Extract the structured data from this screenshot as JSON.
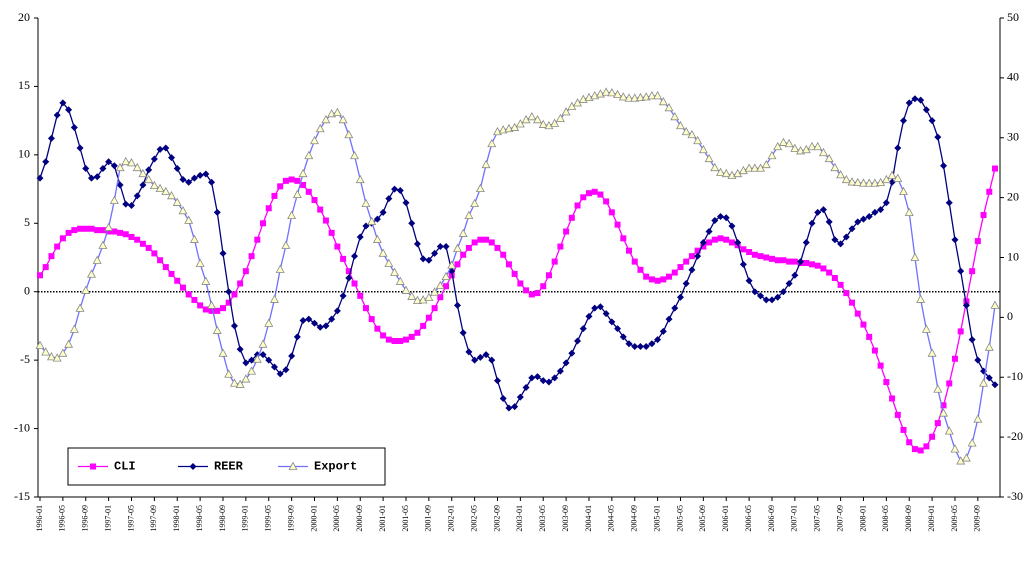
{
  "chart_data": {
    "type": "line",
    "categories": [
      "1996-01",
      null,
      null,
      null,
      "1996-05",
      null,
      null,
      null,
      "1996-09",
      null,
      null,
      null,
      "1997-01",
      null,
      null,
      null,
      "1997-05",
      null,
      null,
      null,
      "1997-09",
      null,
      null,
      null,
      "1998-01",
      null,
      null,
      null,
      "1998-05",
      null,
      null,
      null,
      "1998-09",
      null,
      null,
      null,
      "1999-01",
      null,
      null,
      null,
      "1999-05",
      null,
      null,
      null,
      "1999-09",
      null,
      null,
      null,
      "2000-01",
      null,
      null,
      null,
      "2000-05",
      null,
      null,
      null,
      "2000-09",
      null,
      null,
      null,
      "2001-01",
      null,
      null,
      null,
      "2001-05",
      null,
      null,
      null,
      "2001-09",
      null,
      null,
      null,
      "2002-01",
      null,
      null,
      null,
      "2002-05",
      null,
      null,
      null,
      "2002-09",
      null,
      null,
      null,
      "2003-01",
      null,
      null,
      null,
      "2003-05",
      null,
      null,
      null,
      "2003-09",
      null,
      null,
      null,
      "2004-01",
      null,
      null,
      null,
      "2004-05",
      null,
      null,
      null,
      "2004-09",
      null,
      null,
      null,
      "2005-01",
      null,
      null,
      null,
      "2005-05",
      null,
      null,
      null,
      "2005-09",
      null,
      null,
      null,
      "2006-01",
      null,
      null,
      null,
      "2006-05",
      null,
      null,
      null,
      "2006-09",
      null,
      null,
      null,
      "2007-01",
      null,
      null,
      null,
      "2007-05",
      null,
      null,
      null,
      "2007-09",
      null,
      null,
      null,
      "2008-01",
      null,
      null,
      null,
      "2008-05",
      null,
      null,
      null,
      "2008-09",
      null,
      null,
      null,
      "2009-01",
      null,
      null,
      null,
      "2009-05",
      null,
      null,
      null,
      "2009-09",
      null,
      null,
      null
    ],
    "series": [
      {
        "name": "CLI",
        "color": "#ff00ff",
        "marker": "square",
        "values": [
          1.2,
          1.8,
          2.6,
          3.3,
          3.9,
          4.3,
          4.5,
          4.6,
          4.6,
          4.6,
          4.5,
          4.5,
          4.4,
          4.4,
          4.3,
          4.2,
          4.0,
          3.8,
          3.5,
          3.2,
          2.8,
          2.3,
          1.8,
          1.3,
          0.8,
          0.3,
          -0.2,
          -0.6,
          -1.0,
          -1.3,
          -1.4,
          -1.4,
          -1.2,
          -0.8,
          -0.2,
          0.6,
          1.5,
          2.6,
          3.8,
          5.0,
          6.1,
          7.0,
          7.7,
          8.1,
          8.2,
          8.1,
          7.8,
          7.3,
          6.7,
          6.0,
          5.2,
          4.3,
          3.3,
          2.4,
          1.5,
          0.6,
          -0.3,
          -1.2,
          -2.0,
          -2.7,
          -3.2,
          -3.5,
          -3.6,
          -3.6,
          -3.5,
          -3.3,
          -3.0,
          -2.5,
          -1.9,
          -1.2,
          -0.4,
          0.4,
          1.2,
          2.0,
          2.7,
          3.2,
          3.6,
          3.8,
          3.8,
          3.6,
          3.2,
          2.7,
          2.0,
          1.3,
          0.6,
          0.1,
          -0.2,
          -0.1,
          0.4,
          1.2,
          2.2,
          3.3,
          4.4,
          5.4,
          6.3,
          6.9,
          7.2,
          7.3,
          7.1,
          6.6,
          5.8,
          4.9,
          3.9,
          3.0,
          2.2,
          1.6,
          1.1,
          0.9,
          0.8,
          0.9,
          1.1,
          1.4,
          1.8,
          2.2,
          2.6,
          3.0,
          3.3,
          3.6,
          3.8,
          3.9,
          3.8,
          3.6,
          3.4,
          3.1,
          2.9,
          2.7,
          2.6,
          2.5,
          2.4,
          2.3,
          2.3,
          2.2,
          2.2,
          2.1,
          2.1,
          2.0,
          1.9,
          1.7,
          1.4,
          1.0,
          0.5,
          -0.1,
          -0.8,
          -1.6,
          -2.4,
          -3.3,
          -4.3,
          -5.4,
          -6.6,
          -7.8,
          -9.0,
          -10.1,
          -11.0,
          -11.5,
          -11.6,
          -11.3,
          -10.6,
          -9.6,
          -8.3,
          -6.7,
          -4.9,
          -2.9,
          -0.7,
          1.5,
          3.7,
          5.6,
          7.3,
          9.0
        ]
      },
      {
        "name": "REER",
        "color": "#000080",
        "marker": "diamond",
        "values": [
          8.3,
          9.5,
          11.2,
          12.9,
          13.8,
          13.3,
          12.0,
          10.5,
          9.0,
          8.3,
          8.4,
          9.0,
          9.5,
          9.2,
          7.8,
          6.4,
          6.3,
          7.0,
          7.8,
          8.9,
          9.7,
          10.4,
          10.5,
          9.8,
          9.0,
          8.2,
          8.0,
          8.3,
          8.5,
          8.6,
          8.0,
          5.8,
          2.8,
          0,
          -2.5,
          -4.2,
          -5.2,
          -5.0,
          -4.6,
          -4.6,
          -5.0,
          -5.5,
          -6.0,
          -5.7,
          -4.7,
          -3.3,
          -2.1,
          -2.0,
          -2.3,
          -2.6,
          -2.5,
          -2.0,
          -1.4,
          -0.3,
          1.0,
          2.6,
          4.0,
          4.8,
          5.0,
          5.3,
          5.8,
          6.8,
          7.5,
          7.4,
          6.5,
          5.0,
          3.5,
          2.4,
          2.3,
          2.8,
          3.3,
          3.3,
          1.5,
          -1.0,
          -3.0,
          -4.4,
          -5.0,
          -4.8,
          -4.6,
          -5.0,
          -6.5,
          -7.8,
          -8.5,
          -8.4,
          -7.7,
          -7.0,
          -6.3,
          -6.2,
          -6.5,
          -6.6,
          -6.3,
          -5.8,
          -5.2,
          -4.5,
          -3.6,
          -2.7,
          -1.8,
          -1.2,
          -1.1,
          -1.6,
          -2.2,
          -2.7,
          -3.3,
          -3.8,
          -4.0,
          -4.0,
          -4.0,
          -3.8,
          -3.5,
          -2.9,
          -2.0,
          -1.2,
          -0.4,
          0.6,
          1.6,
          2.6,
          3.6,
          4.4,
          5.2,
          5.5,
          5.4,
          4.8,
          3.6,
          2.0,
          0.8,
          0.0,
          -0.3,
          -0.6,
          -0.6,
          -0.4,
          0,
          0.6,
          1.2,
          2.2,
          3.6,
          5.0,
          5.8,
          6.0,
          5.1,
          3.8,
          3.5,
          4.0,
          4.6,
          5.1,
          5.3,
          5.5,
          5.8,
          6.0,
          6.5,
          8.0,
          10.5,
          12.5,
          13.8,
          14.1,
          14.0,
          13.3,
          12.5,
          11.3,
          9.2,
          6.5,
          3.8,
          1.5,
          -1.0,
          -3.5,
          -5.0,
          -5.8,
          -6.3,
          -6.8
        ]
      },
      {
        "name": "Export",
        "color": "#7070ff",
        "marker": "triangle",
        "marker_fill": "#ffffcc",
        "axis": "y2",
        "values": [
          -4.7,
          -5.8,
          -6.6,
          -6.8,
          -6.0,
          -4.5,
          -2.0,
          1.5,
          4.5,
          7.2,
          9.5,
          12,
          15,
          19.5,
          25,
          26,
          25.8,
          25,
          24,
          23,
          22,
          21.5,
          21,
          20.3,
          19.2,
          17.8,
          16.2,
          13,
          9,
          6,
          2,
          -2.2,
          -6,
          -9.5,
          -11,
          -11.2,
          -10.3,
          -9,
          -7,
          -4.5,
          -1,
          3,
          8,
          12,
          17,
          20.5,
          24,
          27,
          29.5,
          31.5,
          33,
          34,
          34.2,
          33,
          30.5,
          27,
          23,
          19,
          16,
          13,
          10.7,
          9,
          7.5,
          6,
          4.5,
          3.5,
          2.8,
          2.9,
          3.3,
          4.2,
          5.3,
          6.8,
          8.7,
          11.5,
          14,
          17,
          19,
          21.5,
          25.5,
          29,
          31,
          31.3,
          31.5,
          31.7,
          32.3,
          33,
          33.5,
          33,
          32.2,
          32,
          32.4,
          33.2,
          34.3,
          35.2,
          35.8,
          36.4,
          36.7,
          37,
          37.3,
          37.6,
          37.5,
          37.2,
          36.8,
          36.6,
          36.6,
          36.7,
          36.8,
          37,
          37,
          36,
          35,
          33.5,
          32,
          31,
          30.5,
          29.5,
          28,
          26.5,
          25,
          24.2,
          24,
          23.7,
          24,
          24.5,
          24.9,
          24.9,
          24.9,
          25.5,
          27,
          28.5,
          29.2,
          29,
          28.2,
          27.8,
          28,
          28.5,
          28.5,
          27.5,
          26.5,
          25,
          23.8,
          23,
          22.6,
          22.5,
          22.4,
          22.4,
          22.4,
          22.5,
          23,
          23.7,
          23.2,
          21,
          17.5,
          10,
          3,
          -2,
          -6,
          -12,
          -16,
          -19,
          -22,
          -24,
          -23.5,
          -21,
          -17,
          -11,
          -5,
          2
        ]
      }
    ],
    "ylim": [
      -15,
      20
    ],
    "yticks": [
      -15,
      -10,
      -5,
      0,
      5,
      10,
      15,
      20
    ],
    "y2lim": [
      -30,
      50
    ],
    "y2ticks": [
      -30,
      -20,
      -10,
      0,
      10,
      20,
      30,
      40,
      50
    ],
    "zero_line": true,
    "legend": "lower left"
  }
}
